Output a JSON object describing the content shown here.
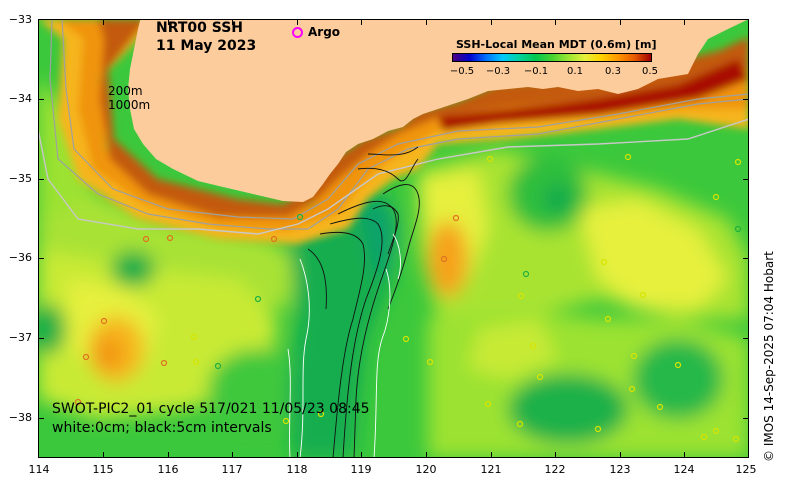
{
  "title": {
    "line1": "NRT00 SSH",
    "line2": "11 May 2023"
  },
  "legend": {
    "argo_label": "Argo",
    "argo_color": "#ff00ff"
  },
  "isobaths": {
    "shallow": "200m",
    "deep": "1000m"
  },
  "colorbar": {
    "title": "SSH-Local Mean MDT (0.6m) [m]",
    "ticks": [
      "−0.5",
      "−0.3",
      "−0.1",
      "0.1",
      "0.3",
      "0.5"
    ],
    "colors": [
      "#4b0082",
      "#0000cd",
      "#0070ff",
      "#00c8ff",
      "#00d2a0",
      "#00c850",
      "#46d232",
      "#9be632",
      "#e6f03c",
      "#ffd200",
      "#ff9600",
      "#e65a00",
      "#a00000"
    ]
  },
  "axes": {
    "x_ticks": [
      "114",
      "115",
      "116",
      "117",
      "118",
      "119",
      "120",
      "121",
      "122",
      "123",
      "124",
      "125"
    ],
    "y_ticks": [
      "−33",
      "−34",
      "−35",
      "−36",
      "−37",
      "−38"
    ]
  },
  "swot": {
    "line1": "SWOT-PIC2_01 cycle 517/021 11/05/23 08:45",
    "line2": "white:0cm; black:5cm intervals"
  },
  "timestamp": "© IMOS 14-Sep-2025 07:04 Hobart",
  "palette": {
    "land": "#fccc9c",
    "ocean_green": "#3cc83c",
    "yellow": "#e6ef30",
    "orange": "#f6a21c",
    "red": "#c25a14"
  }
}
